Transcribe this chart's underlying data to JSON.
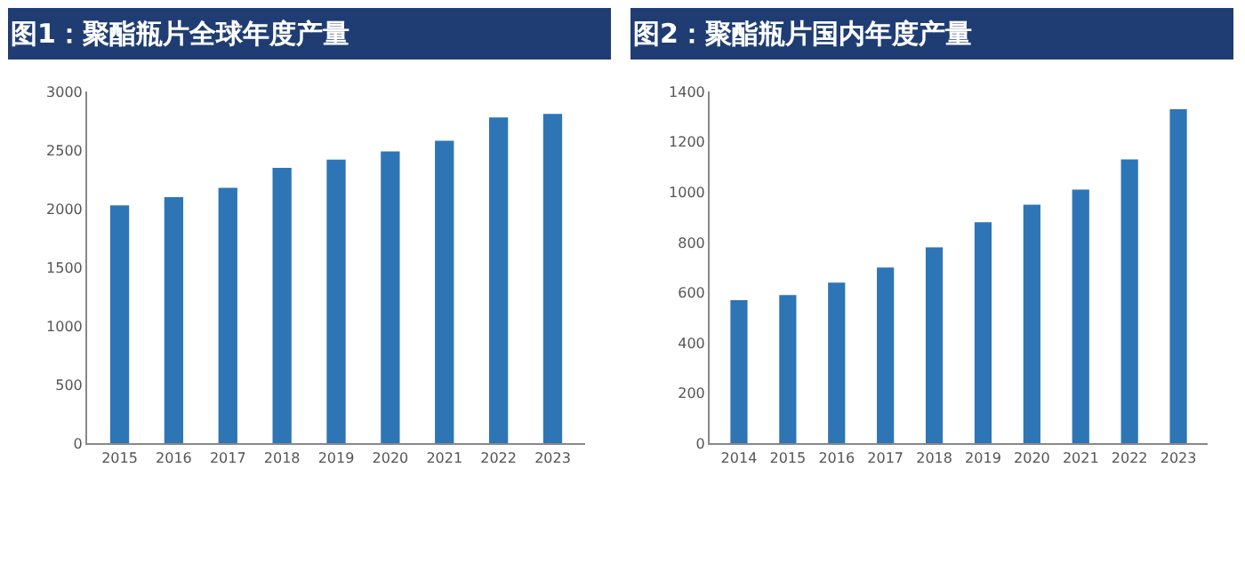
{
  "chart_data": [
    {
      "type": "bar",
      "title": "图1：聚酯瓶片全球年度产量",
      "categories": [
        "2015",
        "2016",
        "2017",
        "2018",
        "2019",
        "2020",
        "2021",
        "2022",
        "2023"
      ],
      "values": [
        2030,
        2100,
        2180,
        2350,
        2420,
        2490,
        2580,
        2780,
        2810
      ],
      "color": "#2e75b6",
      "ylim": [
        0,
        3000
      ],
      "yticks": [
        0,
        500,
        1000,
        1500,
        2000,
        2500,
        3000
      ]
    },
    {
      "type": "bar",
      "title": "图2：聚酯瓶片国内年度产量",
      "categories": [
        "2014",
        "2015",
        "2016",
        "2017",
        "2018",
        "2019",
        "2020",
        "2021",
        "2022",
        "2023"
      ],
      "values": [
        570,
        590,
        640,
        700,
        780,
        880,
        950,
        1010,
        1130,
        1330
      ],
      "color": "#2e75b6",
      "ylim": [
        0,
        1400
      ],
      "yticks": [
        0,
        200,
        400,
        600,
        800,
        1000,
        1200,
        1400
      ]
    }
  ]
}
